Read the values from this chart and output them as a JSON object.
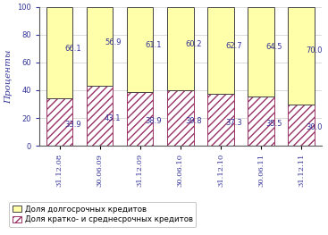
{
  "categories": [
    "31.12.08",
    "30.06.09",
    "31.12.09",
    "30.06.10",
    "31.12.10",
    "30.06.11",
    "31.12.11"
  ],
  "long_term": [
    66.1,
    56.9,
    61.1,
    60.2,
    62.7,
    64.5,
    70.0
  ],
  "short_term": [
    33.9,
    43.1,
    38.9,
    39.8,
    37.3,
    35.5,
    30.0
  ],
  "long_term_color": "#ffffaa",
  "short_term_hatch": "////",
  "short_term_face": "#ffffff",
  "short_term_edge": "#993366",
  "bar_edge_color": "#444444",
  "ylabel": "Проценты",
  "ylim": [
    0,
    100
  ],
  "yticks": [
    0,
    20,
    40,
    60,
    80,
    100
  ],
  "legend_long": "Доля долгосрочных кредитов",
  "legend_short": "Доля кратко- и среднесрочных кредитов",
  "label_fontsize": 6.0,
  "tick_fontsize": 6.0,
  "ylabel_fontsize": 7.5,
  "bar_width": 0.65
}
